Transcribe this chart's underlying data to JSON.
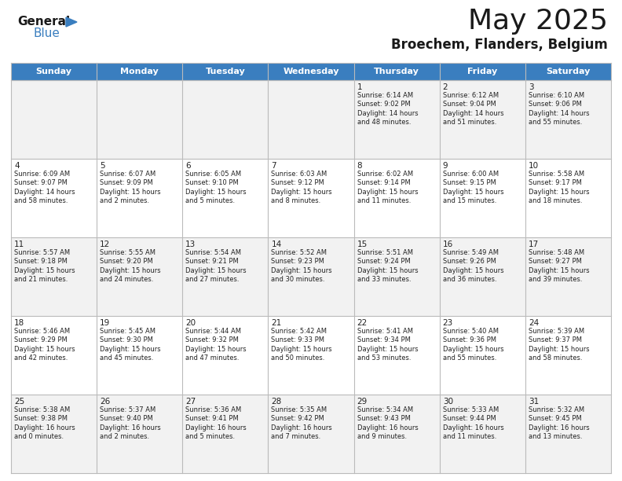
{
  "title": "May 2025",
  "subtitle": "Broechem, Flanders, Belgium",
  "header_bg": "#3a7ebf",
  "header_text": "#ffffff",
  "row_bg_odd": "#f2f2f2",
  "row_bg_even": "#ffffff",
  "border_color": "#bbbbbb",
  "day_headers": [
    "Sunday",
    "Monday",
    "Tuesday",
    "Wednesday",
    "Thursday",
    "Friday",
    "Saturday"
  ],
  "calendar_data": [
    [
      "",
      "",
      "",
      "",
      "1\nSunrise: 6:14 AM\nSunset: 9:02 PM\nDaylight: 14 hours\nand 48 minutes.",
      "2\nSunrise: 6:12 AM\nSunset: 9:04 PM\nDaylight: 14 hours\nand 51 minutes.",
      "3\nSunrise: 6:10 AM\nSunset: 9:06 PM\nDaylight: 14 hours\nand 55 minutes."
    ],
    [
      "4\nSunrise: 6:09 AM\nSunset: 9:07 PM\nDaylight: 14 hours\nand 58 minutes.",
      "5\nSunrise: 6:07 AM\nSunset: 9:09 PM\nDaylight: 15 hours\nand 2 minutes.",
      "6\nSunrise: 6:05 AM\nSunset: 9:10 PM\nDaylight: 15 hours\nand 5 minutes.",
      "7\nSunrise: 6:03 AM\nSunset: 9:12 PM\nDaylight: 15 hours\nand 8 minutes.",
      "8\nSunrise: 6:02 AM\nSunset: 9:14 PM\nDaylight: 15 hours\nand 11 minutes.",
      "9\nSunrise: 6:00 AM\nSunset: 9:15 PM\nDaylight: 15 hours\nand 15 minutes.",
      "10\nSunrise: 5:58 AM\nSunset: 9:17 PM\nDaylight: 15 hours\nand 18 minutes."
    ],
    [
      "11\nSunrise: 5:57 AM\nSunset: 9:18 PM\nDaylight: 15 hours\nand 21 minutes.",
      "12\nSunrise: 5:55 AM\nSunset: 9:20 PM\nDaylight: 15 hours\nand 24 minutes.",
      "13\nSunrise: 5:54 AM\nSunset: 9:21 PM\nDaylight: 15 hours\nand 27 minutes.",
      "14\nSunrise: 5:52 AM\nSunset: 9:23 PM\nDaylight: 15 hours\nand 30 minutes.",
      "15\nSunrise: 5:51 AM\nSunset: 9:24 PM\nDaylight: 15 hours\nand 33 minutes.",
      "16\nSunrise: 5:49 AM\nSunset: 9:26 PM\nDaylight: 15 hours\nand 36 minutes.",
      "17\nSunrise: 5:48 AM\nSunset: 9:27 PM\nDaylight: 15 hours\nand 39 minutes."
    ],
    [
      "18\nSunrise: 5:46 AM\nSunset: 9:29 PM\nDaylight: 15 hours\nand 42 minutes.",
      "19\nSunrise: 5:45 AM\nSunset: 9:30 PM\nDaylight: 15 hours\nand 45 minutes.",
      "20\nSunrise: 5:44 AM\nSunset: 9:32 PM\nDaylight: 15 hours\nand 47 minutes.",
      "21\nSunrise: 5:42 AM\nSunset: 9:33 PM\nDaylight: 15 hours\nand 50 minutes.",
      "22\nSunrise: 5:41 AM\nSunset: 9:34 PM\nDaylight: 15 hours\nand 53 minutes.",
      "23\nSunrise: 5:40 AM\nSunset: 9:36 PM\nDaylight: 15 hours\nand 55 minutes.",
      "24\nSunrise: 5:39 AM\nSunset: 9:37 PM\nDaylight: 15 hours\nand 58 minutes."
    ],
    [
      "25\nSunrise: 5:38 AM\nSunset: 9:38 PM\nDaylight: 16 hours\nand 0 minutes.",
      "26\nSunrise: 5:37 AM\nSunset: 9:40 PM\nDaylight: 16 hours\nand 2 minutes.",
      "27\nSunrise: 5:36 AM\nSunset: 9:41 PM\nDaylight: 16 hours\nand 5 minutes.",
      "28\nSunrise: 5:35 AM\nSunset: 9:42 PM\nDaylight: 16 hours\nand 7 minutes.",
      "29\nSunrise: 5:34 AM\nSunset: 9:43 PM\nDaylight: 16 hours\nand 9 minutes.",
      "30\nSunrise: 5:33 AM\nSunset: 9:44 PM\nDaylight: 16 hours\nand 11 minutes.",
      "31\nSunrise: 5:32 AM\nSunset: 9:45 PM\nDaylight: 16 hours\nand 13 minutes."
    ]
  ],
  "fig_width": 7.92,
  "fig_height": 6.12,
  "dpi": 100
}
